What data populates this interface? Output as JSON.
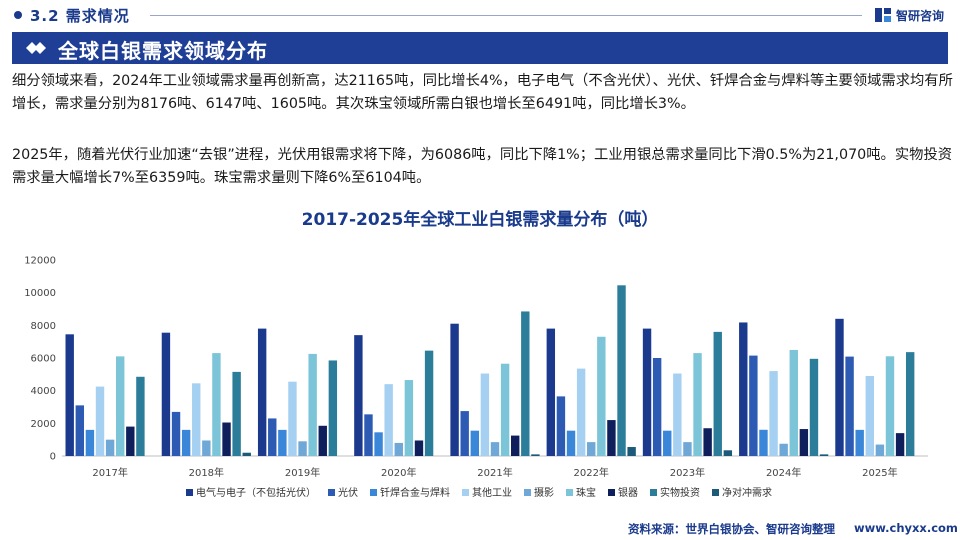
{
  "header": {
    "section": "3.2 需求情况",
    "logo_text": "智研咨询",
    "banner_title": "全球白银需求领域分布"
  },
  "body": {
    "para1": "细分领域来看，2024年工业领域需求量再创新高，达21165吨，同比增长4%，电子电气（不含光伏）、光伏、钎焊合金与焊料等主要领域需求均有所增长，需求量分别为8176吨、6147吨、1605吨。其次珠宝领域所需白银也增长至6491吨，同比增长3%。",
    "para2": "2025年，随着光伏行业加速“去银”进程，光伏用银需求将下降，为6086吨，同比下降1%；工业用银总需求量同比下滑0.5%为21,070吨。实物投资需求量大幅增长7%至6359吨。珠宝需求量则下降6%至6104吨。"
  },
  "colors": {
    "primary": "#1f3f96",
    "accent": "#1a3a8c"
  },
  "chart_data": {
    "type": "bar",
    "title": "2017-2025年全球工业白银需求量分布（吨）",
    "xlabel": "",
    "ylabel": "",
    "ylim": [
      0,
      12000
    ],
    "yticks": [
      0,
      2000,
      4000,
      6000,
      8000,
      10000,
      12000
    ],
    "categories": [
      "2017年",
      "2018年",
      "2019年",
      "2020年",
      "2021年",
      "2022年",
      "2023年",
      "2024年",
      "2025年"
    ],
    "series": [
      {
        "name": "电气与电子（不包括光伏）",
        "color": "#1b3a8e",
        "values": [
          7450,
          7550,
          7800,
          7400,
          8100,
          7800,
          7800,
          8176,
          8400
        ]
      },
      {
        "name": "光伏",
        "color": "#2d5bb3",
        "values": [
          3100,
          2700,
          2300,
          2550,
          2750,
          3650,
          6000,
          6147,
          6086
        ]
      },
      {
        "name": "钎焊合金与焊料",
        "color": "#3a86d9",
        "values": [
          1600,
          1600,
          1600,
          1450,
          1550,
          1550,
          1550,
          1605,
          1600
        ]
      },
      {
        "name": "其他工业",
        "color": "#a6d0f2",
        "values": [
          4250,
          4450,
          4550,
          4400,
          5050,
          5350,
          5050,
          5200,
          4900
        ]
      },
      {
        "name": "摄影",
        "color": "#6fa8d6",
        "values": [
          1000,
          950,
          900,
          800,
          850,
          850,
          850,
          750,
          700
        ]
      },
      {
        "name": "珠宝",
        "color": "#7cc4d8",
        "values": [
          6100,
          6300,
          6250,
          4650,
          5650,
          7300,
          6300,
          6491,
          6104
        ]
      },
      {
        "name": "银器",
        "color": "#0f1f5c",
        "values": [
          1800,
          2050,
          1850,
          950,
          1250,
          2200,
          1700,
          1650,
          1400
        ]
      },
      {
        "name": "实物投资",
        "color": "#2b7d99",
        "values": [
          4850,
          5150,
          5850,
          6450,
          8850,
          10450,
          7600,
          5950,
          6359
        ]
      },
      {
        "name": "净对冲需求",
        "color": "#1d5a7a",
        "values": [
          0,
          200,
          0,
          0,
          100,
          550,
          350,
          100,
          0
        ]
      }
    ],
    "legend_position": "bottom"
  },
  "footer": {
    "source": "资料来源：世界白银协会、智研咨询整理",
    "url": "www.chyxx.com"
  }
}
